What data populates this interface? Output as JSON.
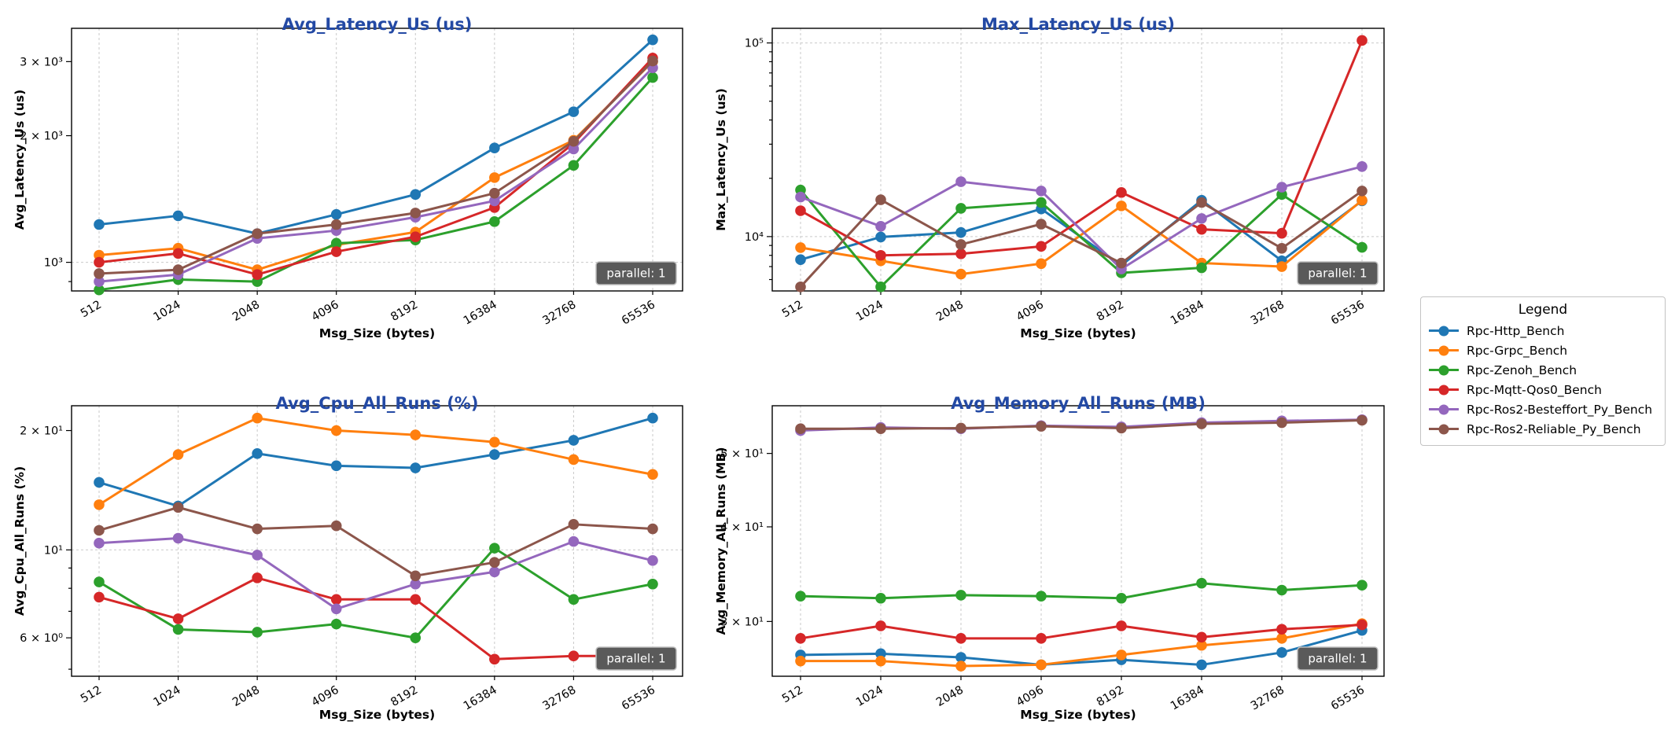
{
  "page": {
    "background": "#ffffff",
    "title_color": "#2349a4"
  },
  "badge_label": "parallel: 1",
  "axis": {
    "xlabel": "Msg_Size (bytes)",
    "categories": [
      "512",
      "1024",
      "2048",
      "4096",
      "8192",
      "16384",
      "32768",
      "65536"
    ]
  },
  "legend": {
    "title": "Legend",
    "items": [
      {
        "label": "Rpc-Http_Bench",
        "color": "#1f77b4"
      },
      {
        "label": "Rpc-Grpc_Bench",
        "color": "#ff7f0e"
      },
      {
        "label": "Rpc-Zenoh_Bench",
        "color": "#2ca02c"
      },
      {
        "label": "Rpc-Mqtt-Qos0_Bench",
        "color": "#d62728"
      },
      {
        "label": "Rpc-Ros2-Besteffort_Py_Bench",
        "color": "#9467bd"
      },
      {
        "label": "Rpc-Ros2-Reliable_Py_Bench",
        "color": "#8c564b"
      }
    ]
  },
  "chart_data": [
    {
      "type": "line",
      "log_y": true,
      "title": "Avg_Latency_Us  (us)",
      "ylabel": "Avg_Latency_Us (us)",
      "xlabel": "Msg_Size (bytes)",
      "categories": [
        "512",
        "1024",
        "2048",
        "4096",
        "8192",
        "16384",
        "32768",
        "65536"
      ],
      "ylim": [
        855,
        3600
      ],
      "yticks": [
        {
          "v": 3000,
          "label": "3 × 10³"
        },
        {
          "v": 2000,
          "label": "2 × 10³"
        },
        {
          "v": 1000,
          "label": "10³"
        }
      ],
      "minor_yticks": [
        900
      ],
      "hgrid": [
        1000
      ],
      "badge": "parallel: 1",
      "series": [
        {
          "name": "Rpc-Http_Bench",
          "color": "#1f77b4",
          "values": [
            1230,
            1290,
            1170,
            1300,
            1450,
            1870,
            2280,
            3380
          ]
        },
        {
          "name": "Rpc-Grpc_Bench",
          "color": "#ff7f0e",
          "values": [
            1040,
            1080,
            960,
            1100,
            1180,
            1590,
            1950,
            3000
          ]
        },
        {
          "name": "Rpc-Zenoh_Bench",
          "color": "#2ca02c",
          "values": [
            860,
            910,
            900,
            1110,
            1130,
            1250,
            1700,
            2750
          ]
        },
        {
          "name": "Rpc-Mqtt-Qos0_Bench",
          "color": "#d62728",
          "values": [
            1000,
            1050,
            935,
            1060,
            1150,
            1350,
            1920,
            3060
          ]
        },
        {
          "name": "Rpc-Ros2-Besteffort_Py_Bench",
          "color": "#9467bd",
          "values": [
            900,
            935,
            1140,
            1190,
            1280,
            1400,
            1860,
            2900
          ]
        },
        {
          "name": "Rpc-Ros2-Reliable_Py_Bench",
          "color": "#8c564b",
          "values": [
            940,
            960,
            1170,
            1230,
            1310,
            1460,
            1940,
            3010
          ]
        }
      ]
    },
    {
      "type": "line",
      "log_y": true,
      "title": "Max_Latency_Us  (us)",
      "ylabel": "Max_Latency_Us (us)",
      "xlabel": "Msg_Size (bytes)",
      "categories": [
        "512",
        "1024",
        "2048",
        "4096",
        "8192",
        "16384",
        "32768",
        "65536"
      ],
      "ylim": [
        5240,
        119000
      ],
      "yticks": [
        {
          "v": 100000,
          "label": "10⁵"
        },
        {
          "v": 10000,
          "label": "10⁴"
        }
      ],
      "minor_yticks": [
        6000,
        7000,
        8000,
        9000,
        20000,
        30000,
        40000,
        50000,
        60000,
        70000,
        80000,
        90000
      ],
      "hgrid": [
        100000,
        10000
      ],
      "badge": "parallel: 1",
      "series": [
        {
          "name": "Rpc-Http_Bench",
          "color": "#1f77b4",
          "values": [
            7600,
            9950,
            10500,
            13900,
            7100,
            15400,
            7500,
            15300
          ]
        },
        {
          "name": "Rpc-Grpc_Bench",
          "color": "#ff7f0e",
          "values": [
            8770,
            7500,
            6400,
            7250,
            14400,
            7300,
            7000,
            15400
          ]
        },
        {
          "name": "Rpc-Zenoh_Bench",
          "color": "#2ca02c",
          "values": [
            17400,
            5500,
            14000,
            15000,
            6500,
            6900,
            16500,
            8800
          ]
        },
        {
          "name": "Rpc-Mqtt-Qos0_Bench",
          "color": "#d62728",
          "values": [
            13600,
            8000,
            8150,
            8900,
            16900,
            10900,
            10400,
            103000
          ]
        },
        {
          "name": "Rpc-Ros2-Besteffort_Py_Bench",
          "color": "#9467bd",
          "values": [
            16000,
            11300,
            19200,
            17200,
            6800,
            12400,
            18000,
            23000
          ]
        },
        {
          "name": "Rpc-Ros2-Reliable_Py_Bench",
          "color": "#8c564b",
          "values": [
            5500,
            15500,
            9100,
            11600,
            7300,
            15000,
            8700,
            17200
          ]
        }
      ]
    },
    {
      "type": "line",
      "log_y": true,
      "title": "Avg_Cpu_All_Runs  (%)",
      "ylabel": "Avg_Cpu_All_Runs (%)",
      "xlabel": "Msg_Size (bytes)",
      "categories": [
        "512",
        "1024",
        "2048",
        "4096",
        "8192",
        "16384",
        "32768",
        "65536"
      ],
      "ylim": [
        4.8,
        23.1
      ],
      "yticks": [
        {
          "v": 20,
          "label": "2 × 10¹"
        },
        {
          "v": 10,
          "label": "10¹"
        },
        {
          "v": 6,
          "label": "6 × 10⁰"
        }
      ],
      "minor_yticks": [
        5,
        7,
        8,
        9
      ],
      "hgrid": [
        10
      ],
      "badge": "parallel: 1",
      "series": [
        {
          "name": "Rpc-Http_Bench",
          "color": "#1f77b4",
          "values": [
            14.8,
            12.9,
            17.5,
            16.3,
            16.1,
            17.4,
            18.9,
            21.5
          ]
        },
        {
          "name": "Rpc-Grpc_Bench",
          "color": "#ff7f0e",
          "values": [
            13.0,
            17.4,
            21.5,
            20.0,
            19.5,
            18.7,
            16.9,
            15.5
          ]
        },
        {
          "name": "Rpc-Zenoh_Bench",
          "color": "#2ca02c",
          "values": [
            8.3,
            6.3,
            6.2,
            6.5,
            6.0,
            10.1,
            7.5,
            8.2
          ]
        },
        {
          "name": "Rpc-Mqtt-Qos0_Bench",
          "color": "#d62728",
          "values": [
            7.6,
            6.7,
            8.5,
            7.5,
            7.5,
            5.3,
            5.4,
            5.4
          ]
        },
        {
          "name": "Rpc-Ros2-Besteffort_Py_Bench",
          "color": "#9467bd",
          "values": [
            10.4,
            10.7,
            9.7,
            7.1,
            8.2,
            8.8,
            10.5,
            9.4
          ]
        },
        {
          "name": "Rpc-Ros2-Reliable_Py_Bench",
          "color": "#8c564b",
          "values": [
            11.2,
            12.8,
            11.3,
            11.5,
            8.6,
            9.3,
            11.6,
            11.3
          ]
        }
      ]
    },
    {
      "type": "line",
      "log_y": true,
      "title": "Avg_Memory_All_Runs  (MB)",
      "ylabel": "Avg_Memory_All_Runs (MB)",
      "xlabel": "Msg_Size (bytes)",
      "categories": [
        "512",
        "1024",
        "2048",
        "4096",
        "8192",
        "16384",
        "32768",
        "65536"
      ],
      "ylim": [
        25.4,
        57.8
      ],
      "yticks": [
        {
          "v": 50,
          "label": "5 × 10¹"
        },
        {
          "v": 40,
          "label": "4 × 10¹"
        },
        {
          "v": 30,
          "label": "3 × 10¹"
        }
      ],
      "minor_yticks": [],
      "hgrid": [],
      "badge": "parallel: 1",
      "series": [
        {
          "name": "Rpc-Http_Bench",
          "color": "#1f77b4",
          "values": [
            27.1,
            27.2,
            26.9,
            26.3,
            26.7,
            26.3,
            27.3,
            29.2
          ]
        },
        {
          "name": "Rpc-Grpc_Bench",
          "color": "#ff7f0e",
          "values": [
            26.6,
            26.6,
            26.2,
            26.3,
            27.1,
            27.9,
            28.5,
            29.8
          ]
        },
        {
          "name": "Rpc-Zenoh_Bench",
          "color": "#2ca02c",
          "values": [
            32.4,
            32.2,
            32.5,
            32.4,
            32.2,
            33.7,
            33.0,
            33.5
          ]
        },
        {
          "name": "Rpc-Mqtt-Qos0_Bench",
          "color": "#d62728",
          "values": [
            28.5,
            29.6,
            28.5,
            28.5,
            29.6,
            28.6,
            29.3,
            29.7
          ]
        },
        {
          "name": "Rpc-Ros2-Besteffort_Py_Bench",
          "color": "#9467bd",
          "values": [
            53.6,
            54.1,
            53.9,
            54.4,
            54.2,
            54.9,
            55.2,
            55.4
          ]
        },
        {
          "name": "Rpc-Ros2-Reliable_Py_Bench",
          "color": "#8c564b",
          "values": [
            53.9,
            53.9,
            54.0,
            54.3,
            54.0,
            54.7,
            54.9,
            55.3
          ]
        }
      ]
    }
  ]
}
